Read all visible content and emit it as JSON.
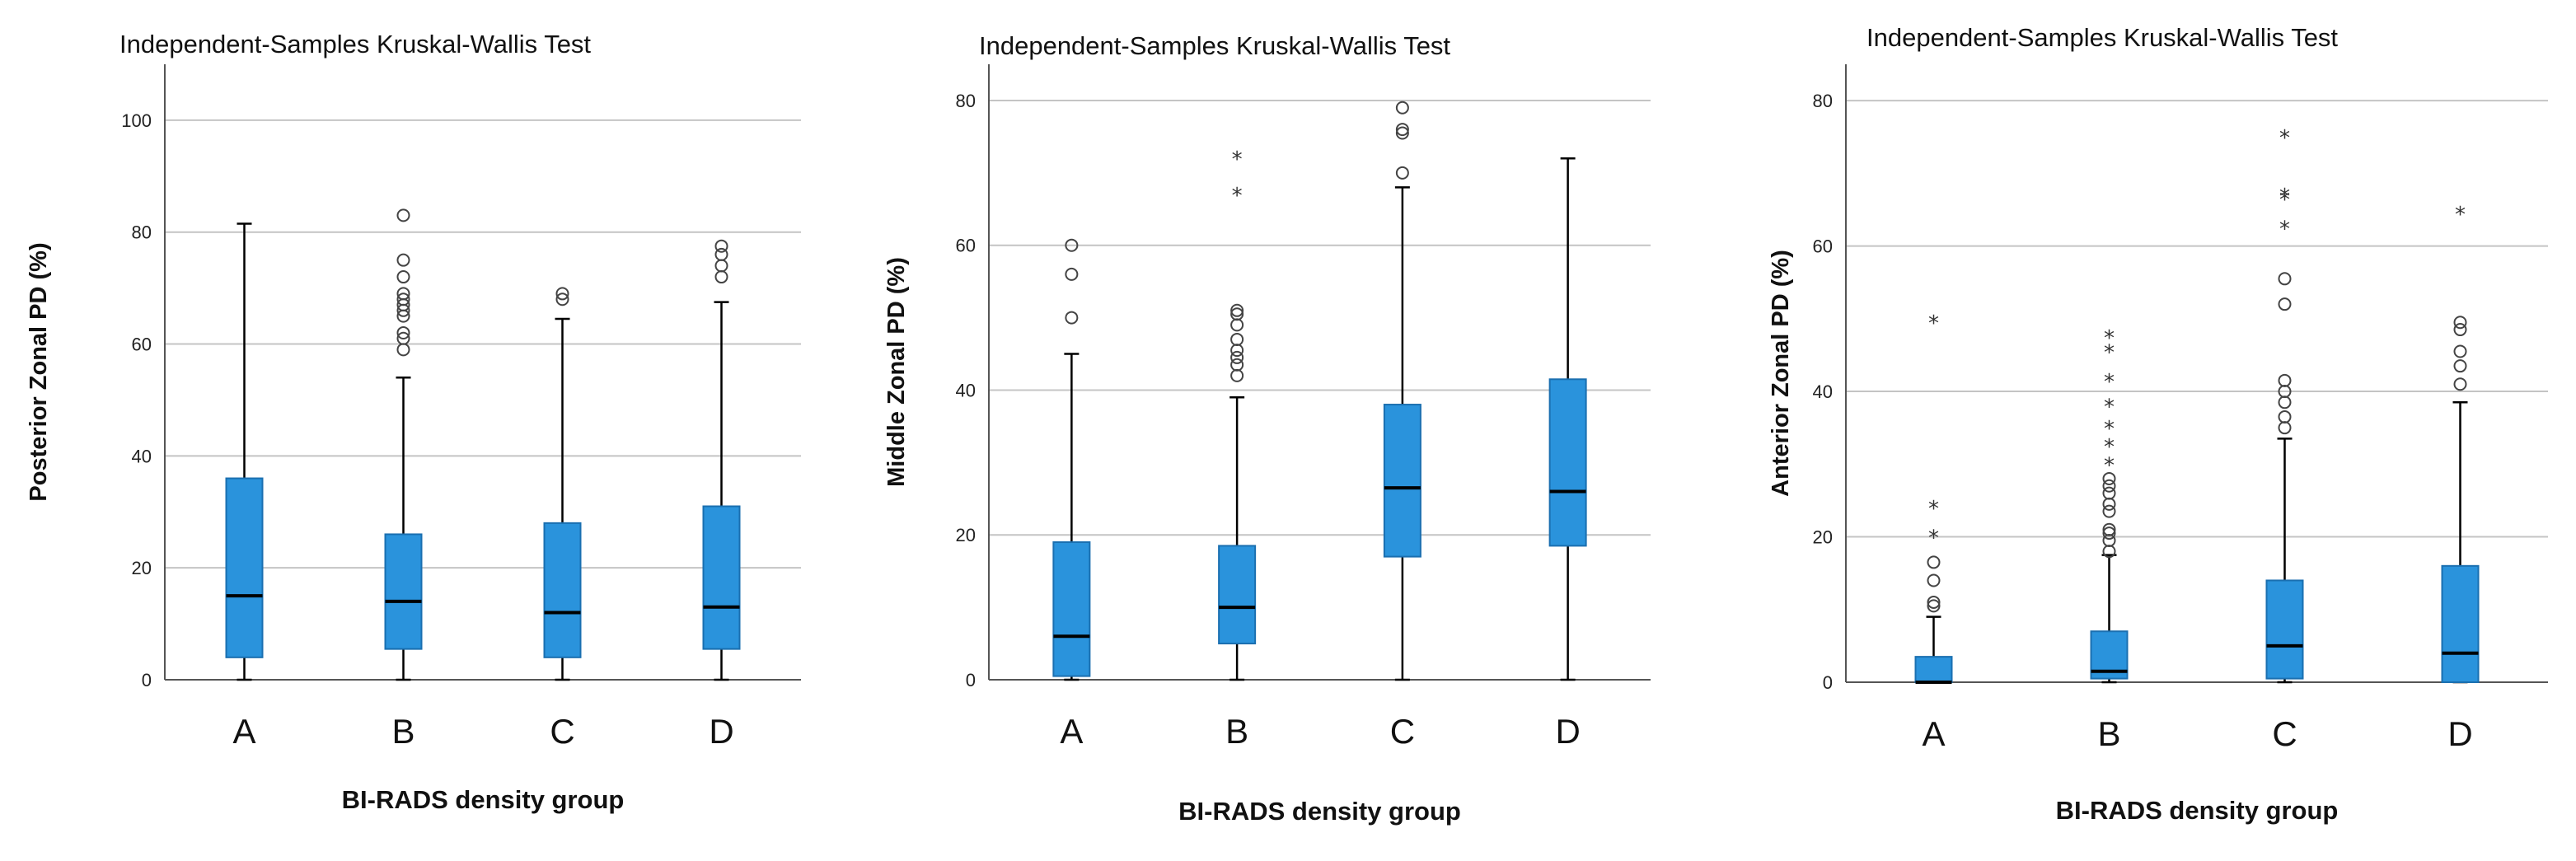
{
  "chart_data": [
    {
      "type": "boxplot",
      "title": "Independent-Samples Kruskal-Wallis Test",
      "xlabel": "BI-RADS density group",
      "ylabel": "Posterior Zonal PD (%)",
      "ylim": [
        0,
        110
      ],
      "yticks": [
        0,
        20,
        40,
        60,
        80,
        100
      ],
      "grid": true,
      "categories": [
        "A",
        "B",
        "C",
        "D"
      ],
      "boxes": [
        {
          "min": 0,
          "q1": 4,
          "median": 15,
          "q3": 36,
          "max": 81.5,
          "outliers_circle": [],
          "outliers_star": []
        },
        {
          "min": 0,
          "q1": 5.5,
          "median": 14,
          "q3": 26,
          "max": 54,
          "outliers_circle": [
            59,
            61,
            62,
            65,
            66,
            67,
            68,
            69,
            72,
            75,
            83
          ],
          "outliers_star": []
        },
        {
          "min": 0,
          "q1": 4,
          "median": 12,
          "q3": 28,
          "max": 64.5,
          "outliers_circle": [
            68,
            69
          ],
          "outliers_star": []
        },
        {
          "min": 0,
          "q1": 5.5,
          "median": 13,
          "q3": 31,
          "max": 67.5,
          "outliers_circle": [
            72,
            74,
            76,
            77.5
          ],
          "outliers_star": []
        }
      ]
    },
    {
      "type": "boxplot",
      "title": "Independent-Samples Kruskal-Wallis Test",
      "xlabel": "BI-RADS density group",
      "ylabel": "Middle Zonal PD (%)",
      "ylim": [
        0,
        85
      ],
      "yticks": [
        0,
        20,
        40,
        60,
        80
      ],
      "grid": true,
      "categories": [
        "A",
        "B",
        "C",
        "D"
      ],
      "boxes": [
        {
          "min": 0,
          "q1": 0.5,
          "median": 6,
          "q3": 19,
          "max": 45,
          "outliers_circle": [
            50,
            56,
            60
          ],
          "outliers_star": []
        },
        {
          "min": 0,
          "q1": 5,
          "median": 10,
          "q3": 18.5,
          "max": 39,
          "outliers_circle": [
            42,
            43.5,
            44.5,
            45.5,
            47,
            49,
            50.5,
            51
          ],
          "outliers_star": [
            67,
            72
          ]
        },
        {
          "min": 0,
          "q1": 17,
          "median": 26.5,
          "q3": 38,
          "max": 68,
          "outliers_circle": [
            70,
            75.5,
            76,
            79
          ],
          "outliers_star": []
        },
        {
          "min": 0,
          "q1": 18.5,
          "median": 26,
          "q3": 41.5,
          "max": 72,
          "outliers_circle": [],
          "outliers_star": []
        }
      ]
    },
    {
      "type": "boxplot",
      "title": "Independent-Samples Kruskal-Wallis Test",
      "xlabel": "BI-RADS density group",
      "ylabel": "Anterior Zonal PD (%)",
      "ylim": [
        0,
        85
      ],
      "yticks": [
        0,
        20,
        40,
        60,
        80
      ],
      "grid": true,
      "categories": [
        "A",
        "B",
        "C",
        "D"
      ],
      "boxes": [
        {
          "min": 0,
          "q1": 0,
          "median": 0,
          "q3": 3.5,
          "max": 9,
          "outliers_circle": [
            10.5,
            11,
            14,
            16.5
          ],
          "outliers_star": [
            20,
            24,
            49.5
          ]
        },
        {
          "min": 0,
          "q1": 0.5,
          "median": 1.5,
          "q3": 7,
          "max": 17.5,
          "outliers_circle": [
            18,
            19.5,
            20.5,
            21,
            23.5,
            24.5,
            26,
            27,
            28
          ],
          "outliers_star": [
            30,
            32.5,
            35,
            38,
            41.5,
            45.5,
            47.5
          ]
        },
        {
          "min": 0,
          "q1": 0.5,
          "median": 5,
          "q3": 14,
          "max": 33.5,
          "outliers_circle": [
            35,
            36.5,
            38.5,
            40,
            41.5,
            52,
            55.5
          ],
          "outliers_star": [
            62.5,
            66.5,
            67,
            75
          ]
        },
        {
          "min": 0,
          "q1": 0,
          "median": 4,
          "q3": 16,
          "max": 38.5,
          "outliers_circle": [
            41,
            43.5,
            45.5,
            48.5,
            49.5
          ],
          "outliers_star": [
            64.5
          ]
        }
      ]
    }
  ]
}
